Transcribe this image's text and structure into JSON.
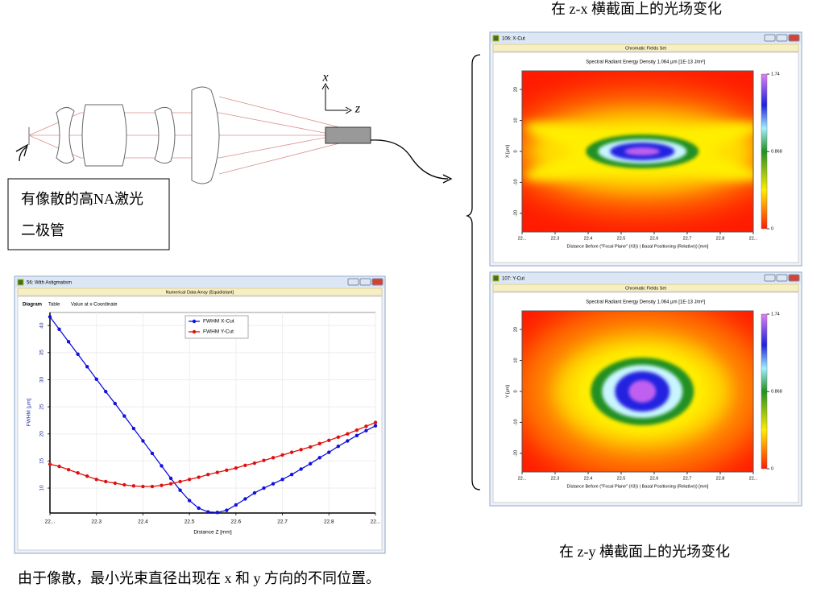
{
  "slide": {
    "top_caption": "在 z-x 横截面上的光场变化",
    "bottom_caption": "在 z-y 横截面上的光场变化",
    "diode_label": [
      "有像散的高NA激光",
      "二极管"
    ],
    "axis_x": "x",
    "axis_z": "z",
    "footer": "由于像散，最小光束直径出现在 x 和 y 方向的不同位置。"
  },
  "fwhm_window": {
    "title": "56: With Astigmatism",
    "band": "Numerical Data Array (Equidistant)",
    "tabs": [
      "Diagram",
      "Table",
      "Value at x-Coordinate"
    ],
    "chart": {
      "type": "line",
      "xlabel": "Distance Z [mm]",
      "ylabel": "FWHM [µm]",
      "grid": true,
      "legend": "top-center",
      "xlim": [
        22.2,
        22.9
      ],
      "xticks": [
        {
          "value": 22.2,
          "label": "22..."
        },
        22.3,
        22.4,
        22.5,
        22.6,
        22.7,
        22.8,
        {
          "value": 22.9,
          "label": "22..."
        }
      ],
      "ylim": [
        5.4,
        42.4
      ],
      "yticks": [
        10,
        15,
        20,
        25,
        30,
        35,
        40
      ],
      "x": [
        22.2,
        22.22,
        22.24,
        22.26,
        22.28,
        22.3,
        22.32,
        22.34,
        22.36,
        22.38,
        22.4,
        22.42,
        22.44,
        22.46,
        22.48,
        22.5,
        22.52,
        22.54,
        22.56,
        22.58,
        22.6,
        22.62,
        22.64,
        22.66,
        22.68,
        22.7,
        22.72,
        22.74,
        22.76,
        22.78,
        22.8,
        22.82,
        22.84,
        22.86,
        22.88,
        22.9
      ],
      "series": [
        {
          "name": "FWHM X-Cut",
          "color": "#1010e0",
          "values": [
            41.6,
            39.3,
            37.0,
            34.7,
            32.4,
            30.1,
            27.8,
            25.6,
            23.3,
            21.0,
            18.7,
            16.4,
            14.1,
            11.8,
            9.6,
            7.7,
            6.3,
            5.6,
            5.5,
            5.9,
            6.9,
            8.0,
            9.1,
            10.0,
            10.8,
            11.6,
            12.5,
            13.5,
            14.5,
            15.6,
            16.6,
            17.7,
            18.7,
            19.7,
            20.6,
            21.5
          ]
        },
        {
          "name": "FWHM Y-Cut",
          "color": "#e01010",
          "values": [
            14.4,
            14.0,
            13.4,
            12.8,
            12.2,
            11.6,
            11.2,
            10.9,
            10.6,
            10.4,
            10.3,
            10.3,
            10.5,
            10.8,
            11.2,
            11.6,
            12.0,
            12.5,
            12.9,
            13.3,
            13.7,
            14.2,
            14.6,
            15.1,
            15.6,
            16.1,
            16.6,
            17.1,
            17.6,
            18.2,
            18.8,
            19.4,
            20.0,
            20.7,
            21.4,
            22.1
          ]
        }
      ]
    }
  },
  "field_windows": [
    {
      "type": "heatmap",
      "title": "106: X-Cut",
      "band": "Chromatic Fields Set",
      "plot_title": "Spectral Radiant Energy Density 1.064 µm  [1E-13 J/m²]",
      "ylabel": "X [µm]",
      "xlabel": "Distance Before (\"Focal Plane\" (#3)) | Basal Positioning (Relative)) [mm]",
      "xlim": [
        22.2,
        22.9
      ],
      "xticks": [
        {
          "value": 22.2,
          "label": "22..."
        },
        22.3,
        22.4,
        22.5,
        22.6,
        22.7,
        22.8,
        {
          "value": 22.9,
          "label": "22..."
        }
      ],
      "ylim": [
        -26,
        26
      ],
      "yticks": [
        20,
        10,
        0,
        -10,
        -20
      ],
      "clim": [
        0,
        1.74
      ],
      "cticks": [
        1.74,
        0.868,
        0
      ]
    },
    {
      "type": "heatmap",
      "title": "107: Y-Cut",
      "band": "Chromatic Fields Set",
      "plot_title": "Spectral Radiant Energy Density 1.064 µm  [1E-13 J/m²]",
      "ylabel": "Y [µm]",
      "xlabel": "Distance Before (\"Focal Plane\" (#3)) | Basal Positioning (Relative)) [mm]",
      "xlim": [
        22.2,
        22.9
      ],
      "xticks": [
        {
          "value": 22.2,
          "label": "22..."
        },
        22.3,
        22.4,
        22.5,
        22.6,
        22.7,
        22.8,
        {
          "value": 22.9,
          "label": "22..."
        }
      ],
      "ylim": [
        -26,
        26
      ],
      "yticks": [
        20,
        10,
        0,
        -10,
        -20
      ],
      "clim": [
        0,
        1.74
      ],
      "cticks": [
        1.74,
        0.868,
        0
      ]
    }
  ]
}
